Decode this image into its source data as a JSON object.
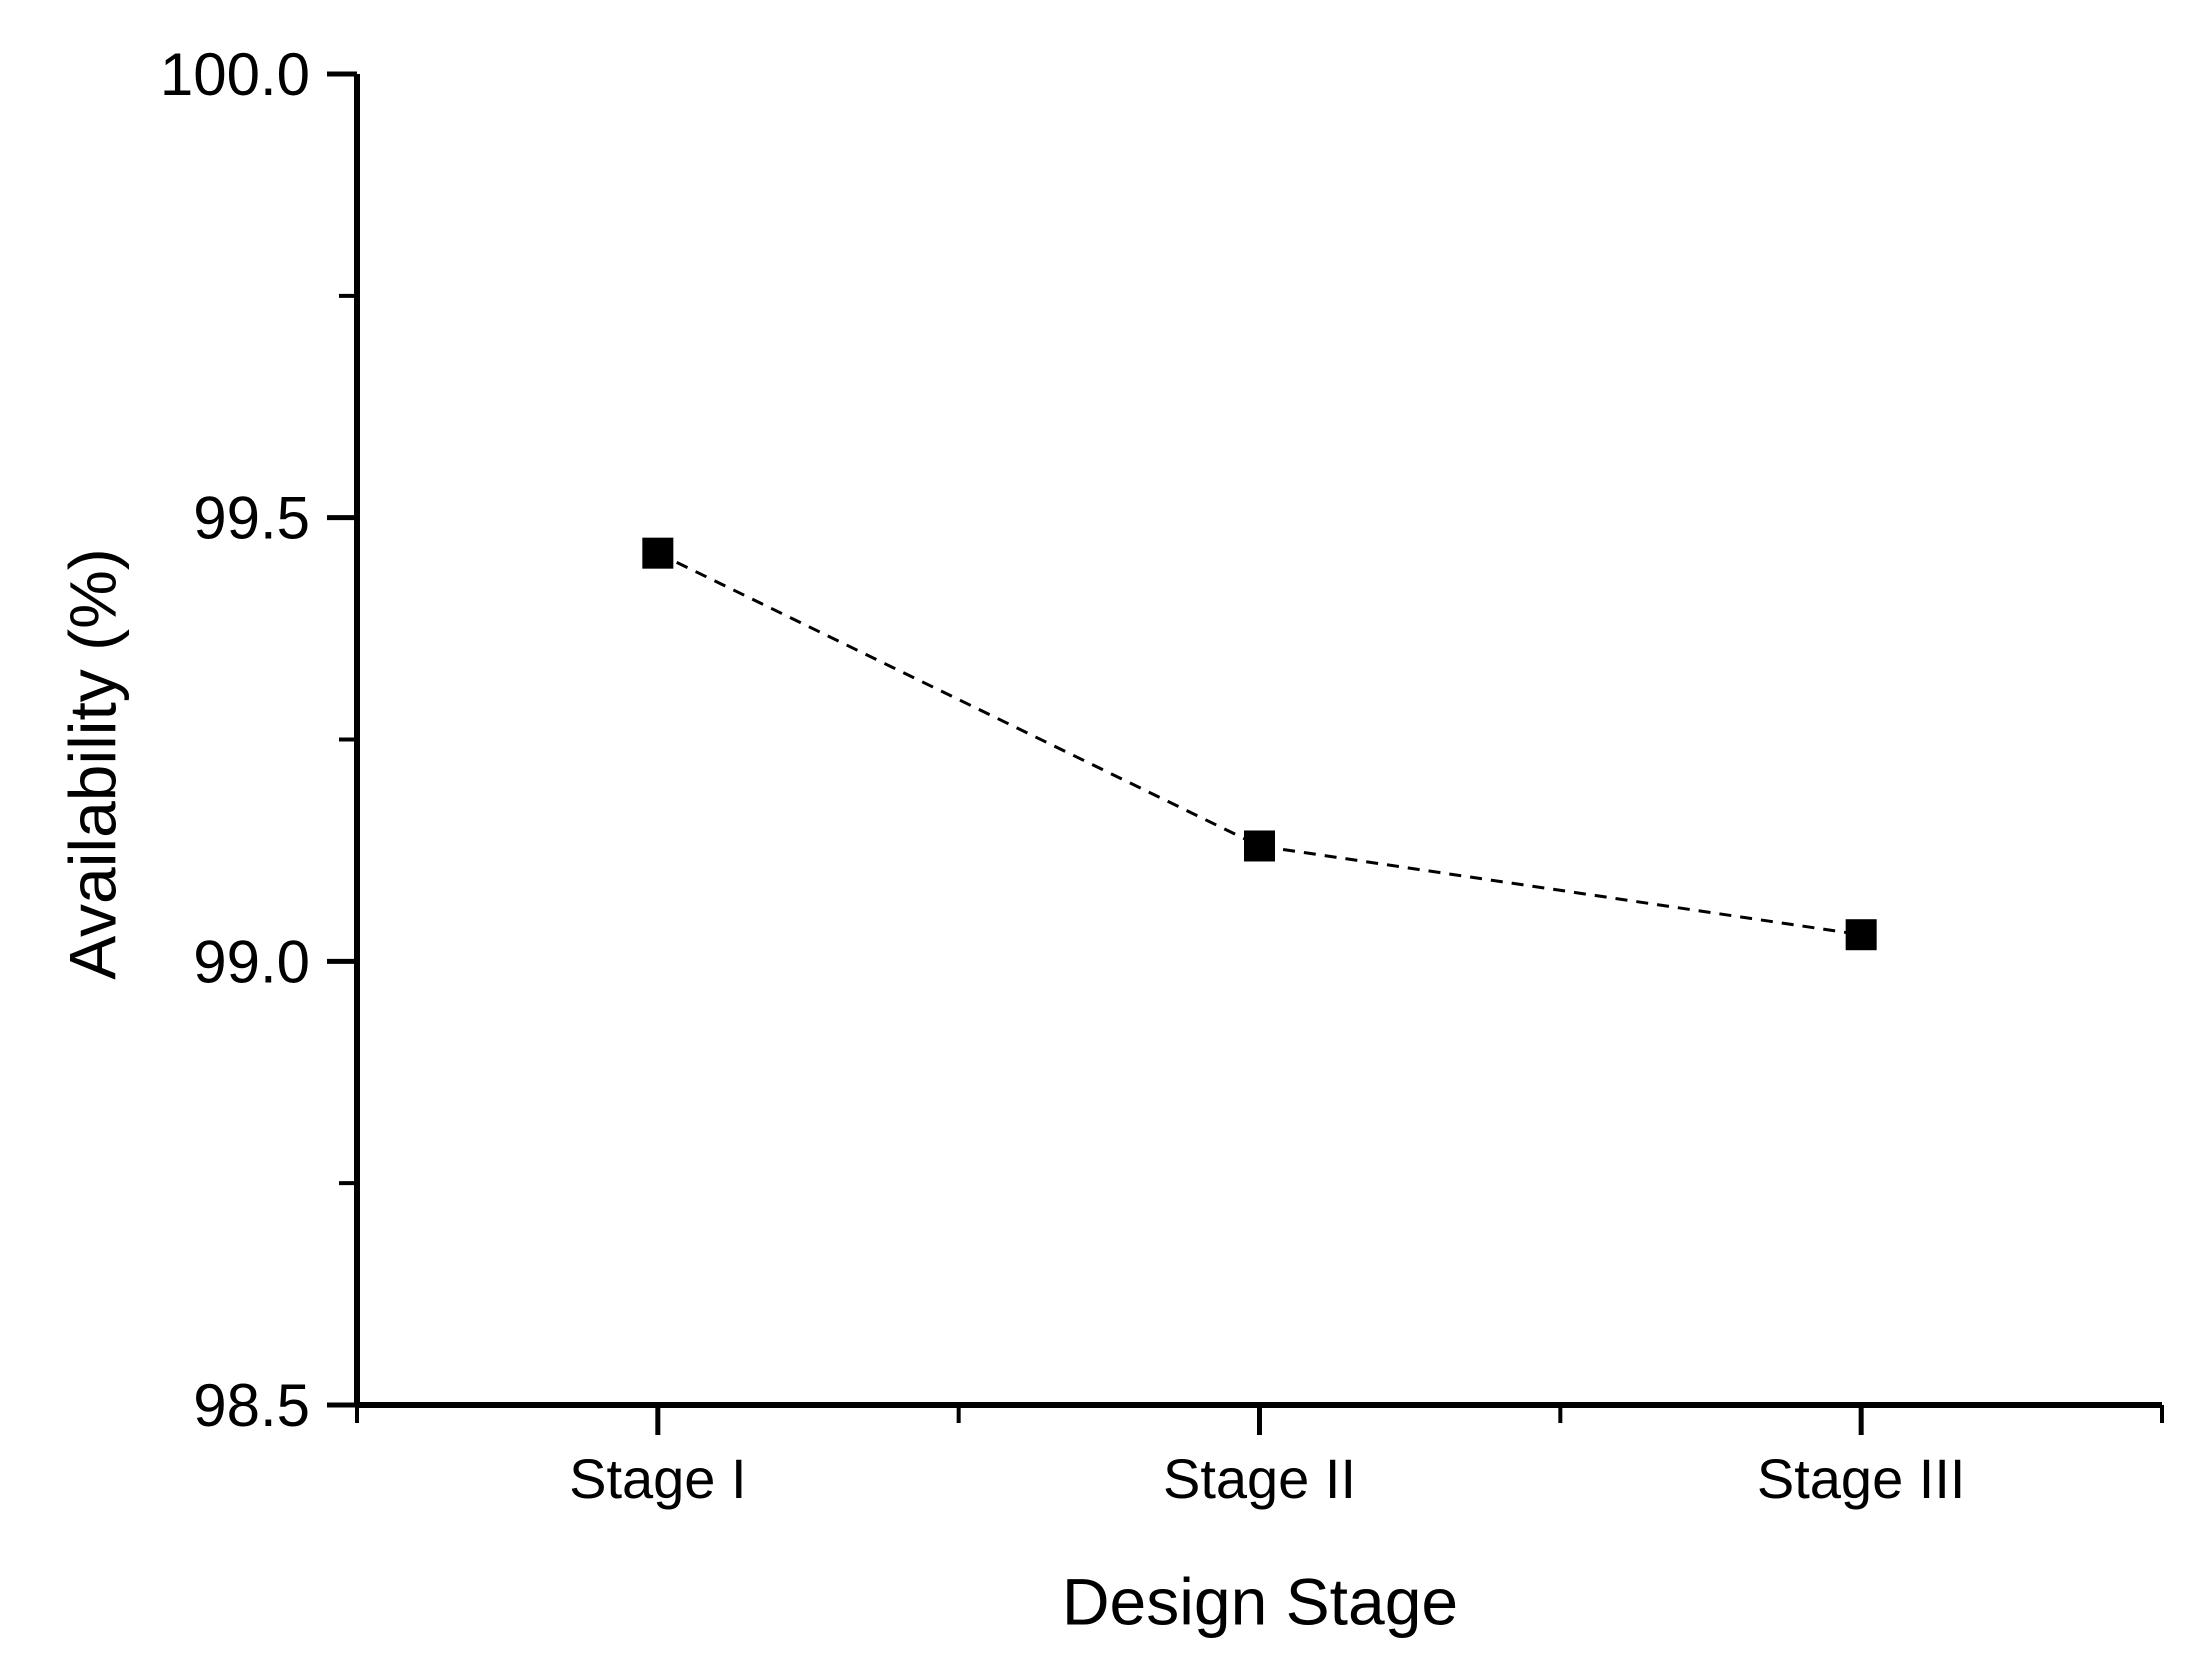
{
  "chart_data": {
    "type": "line",
    "title": "",
    "xlabel": "Design Stage",
    "ylabel": "Availability (%)",
    "categories": [
      "Stage I",
      "Stage II",
      "Stage III"
    ],
    "values": [
      99.46,
      99.13,
      99.03
    ],
    "series": [
      {
        "name": "Availability",
        "values": [
          99.46,
          99.13,
          99.03
        ]
      }
    ],
    "ylim": [
      98.5,
      100.0
    ],
    "y_major_ticks": [
      {
        "value": 100.0,
        "label": "100.0"
      },
      {
        "value": 99.5,
        "label": "99.5"
      },
      {
        "value": 99.0,
        "label": "99.0"
      },
      {
        "value": 98.5,
        "label": "98.5"
      }
    ],
    "y_minor_tick_values": [
      99.75,
      99.25,
      98.75
    ],
    "x_range": [
      0,
      6
    ],
    "x_major_positions": [
      1,
      3,
      5
    ],
    "x_minor_positions": [
      0,
      2,
      4,
      6
    ],
    "marker": "filled-square",
    "line_style": "dashed",
    "grid": false,
    "legend": "none",
    "line_color": "#000000",
    "marker_color": "#000000",
    "axis_color": "#000000",
    "background_color": "#ffffff"
  }
}
